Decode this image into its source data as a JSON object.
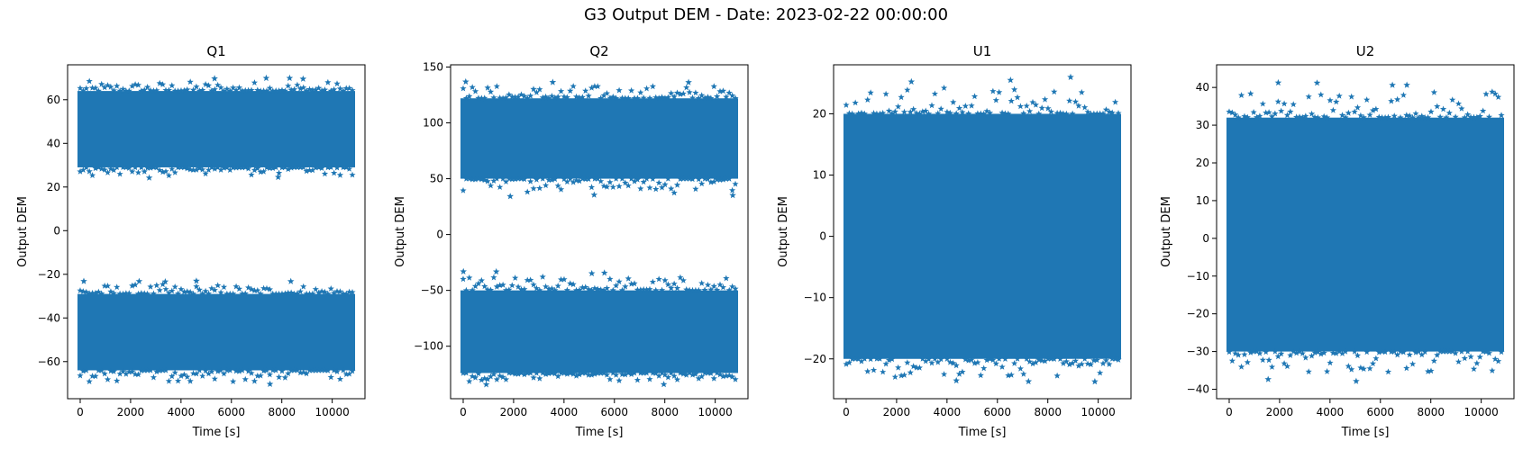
{
  "figure": {
    "title": "G3 Output DEM - Date: 2023-02-22 00:00:00"
  },
  "chart_data": [
    {
      "type": "scatter",
      "title": "Q1",
      "xlabel": "Time [s]",
      "ylabel": "Output DEM",
      "marker": "star",
      "color": "#1f77b4",
      "xlim": [
        -500,
        11300
      ],
      "ylim": [
        -77,
        76
      ],
      "xticks": [
        0,
        2000,
        4000,
        6000,
        8000,
        10000
      ],
      "yticks": [
        -60,
        -40,
        -20,
        0,
        20,
        40,
        60
      ],
      "x_range": [
        0,
        10800
      ],
      "bands": [
        {
          "core": [
            29,
            64
          ],
          "outliers": [
            24,
            70
          ]
        },
        {
          "core": [
            -64,
            -29
          ],
          "outliers": [
            -71,
            -23
          ]
        }
      ]
    },
    {
      "type": "scatter",
      "title": "Q2",
      "xlabel": "Time [s]",
      "ylabel": "Output DEM",
      "marker": "star",
      "color": "#1f77b4",
      "xlim": [
        -500,
        11300
      ],
      "ylim": [
        -147,
        152
      ],
      "xticks": [
        0,
        2000,
        4000,
        6000,
        8000,
        10000
      ],
      "yticks": [
        -100,
        -50,
        0,
        50,
        100,
        150
      ],
      "x_range": [
        0,
        10800
      ],
      "bands": [
        {
          "core": [
            50,
            122
          ],
          "outliers": [
            33,
            138
          ]
        },
        {
          "core": [
            -124,
            -50
          ],
          "outliers": [
            -135,
            -33
          ]
        }
      ]
    },
    {
      "type": "scatter",
      "title": "U1",
      "xlabel": "Time [s]",
      "ylabel": "Output DEM",
      "marker": "star",
      "color": "#1f77b4",
      "xlim": [
        -500,
        11300
      ],
      "ylim": [
        -26.5,
        28
      ],
      "xticks": [
        0,
        2000,
        4000,
        6000,
        8000,
        10000
      ],
      "yticks": [
        -20,
        -10,
        0,
        10,
        20
      ],
      "x_range": [
        0,
        10800
      ],
      "bands": [
        {
          "core": [
            -20,
            20
          ],
          "outliers": [
            -24,
            26
          ]
        }
      ]
    },
    {
      "type": "scatter",
      "title": "U2",
      "xlabel": "Time [s]",
      "ylabel": "Output DEM",
      "marker": "star",
      "color": "#1f77b4",
      "xlim": [
        -500,
        11300
      ],
      "ylim": [
        -42.5,
        46
      ],
      "xticks": [
        0,
        2000,
        4000,
        6000,
        8000,
        10000
      ],
      "yticks": [
        -40,
        -30,
        -20,
        -10,
        0,
        10,
        20,
        30,
        40
      ],
      "x_range": [
        0,
        10800
      ],
      "bands": [
        {
          "core": [
            -30,
            32
          ],
          "outliers": [
            -38,
            42
          ]
        }
      ]
    }
  ]
}
